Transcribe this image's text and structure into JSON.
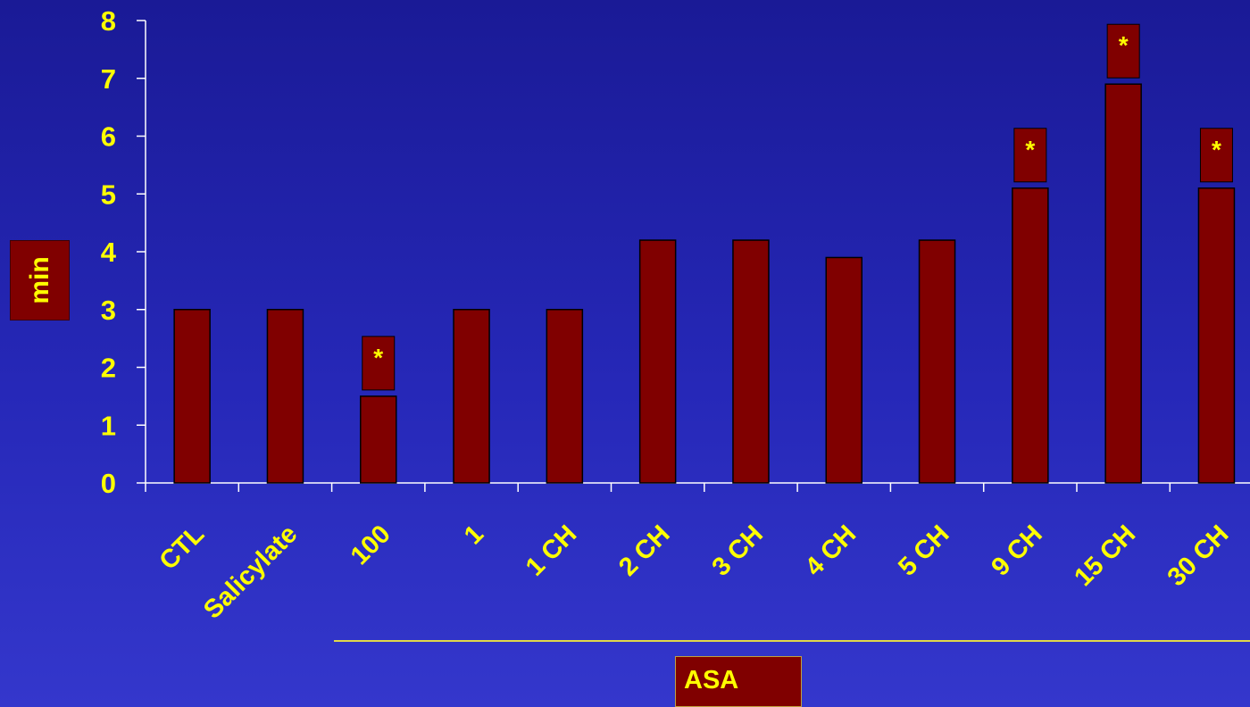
{
  "chart_data": {
    "type": "bar",
    "categories": [
      "CTL",
      "Salicylate",
      "100",
      "1",
      "1 CH",
      "2 CH",
      "3 CH",
      "4 CH",
      "5 CH",
      "9 CH",
      "15 CH",
      "30 CH"
    ],
    "values": [
      3.0,
      3.0,
      1.5,
      3.0,
      3.0,
      4.2,
      4.2,
      3.9,
      4.2,
      5.1,
      6.9,
      5.1
    ],
    "significant": [
      false,
      false,
      true,
      false,
      false,
      false,
      false,
      false,
      false,
      true,
      true,
      true
    ],
    "significance_marker": "*",
    "ylabel": "min",
    "group_label": "ASA",
    "group_categories": [
      "100",
      "1",
      "1 CH",
      "2 CH",
      "3 CH",
      "4 CH",
      "5 CH",
      "9 CH",
      "15 CH",
      "30 CH"
    ],
    "ylim": [
      0,
      8
    ],
    "yticks": [
      0,
      1,
      2,
      3,
      4,
      5,
      6,
      7,
      8
    ],
    "grid": false,
    "colors": {
      "bar": "#800000",
      "bar_outline": "#000000",
      "text": "#ffff00",
      "axis": "#ffffff"
    }
  }
}
